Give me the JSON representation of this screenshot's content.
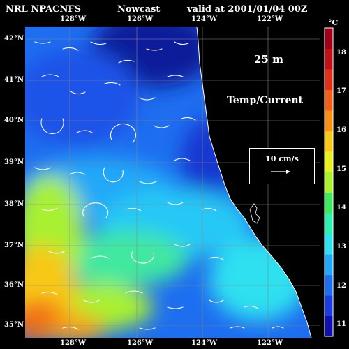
{
  "header": {
    "model": "NRL NPACNFS",
    "kind": "Nowcast",
    "valid": "valid at 2001/01/04 00Z"
  },
  "map": {
    "lon_ticks": [
      "128°W",
      "126°W",
      "124°W",
      "122°W"
    ],
    "lat_ticks": [
      "42°N",
      "41°N",
      "40°N",
      "39°N",
      "38°N",
      "37°N",
      "36°N",
      "35°N"
    ],
    "lon_range": [
      -129.5,
      -120.3
    ],
    "lat_range": [
      34.8,
      42.2
    ],
    "land_color": "#000000",
    "grid": true
  },
  "annotations": {
    "depth": "25 m",
    "field": "Temp/Current",
    "vector_legend": "10 cm/s"
  },
  "colorbar": {
    "unit": "°C",
    "ticks": [
      "18",
      "17",
      "16",
      "15",
      "14",
      "13",
      "12",
      "11"
    ],
    "colors": [
      "#1010b0",
      "#1a3ce0",
      "#1e6ef0",
      "#22a8f8",
      "#2ee0f0",
      "#30f0b0",
      "#40e860",
      "#a8f030",
      "#e8f020",
      "#f8c818",
      "#f89018",
      "#f06018",
      "#e03018",
      "#c01018",
      "#a00018"
    ]
  }
}
